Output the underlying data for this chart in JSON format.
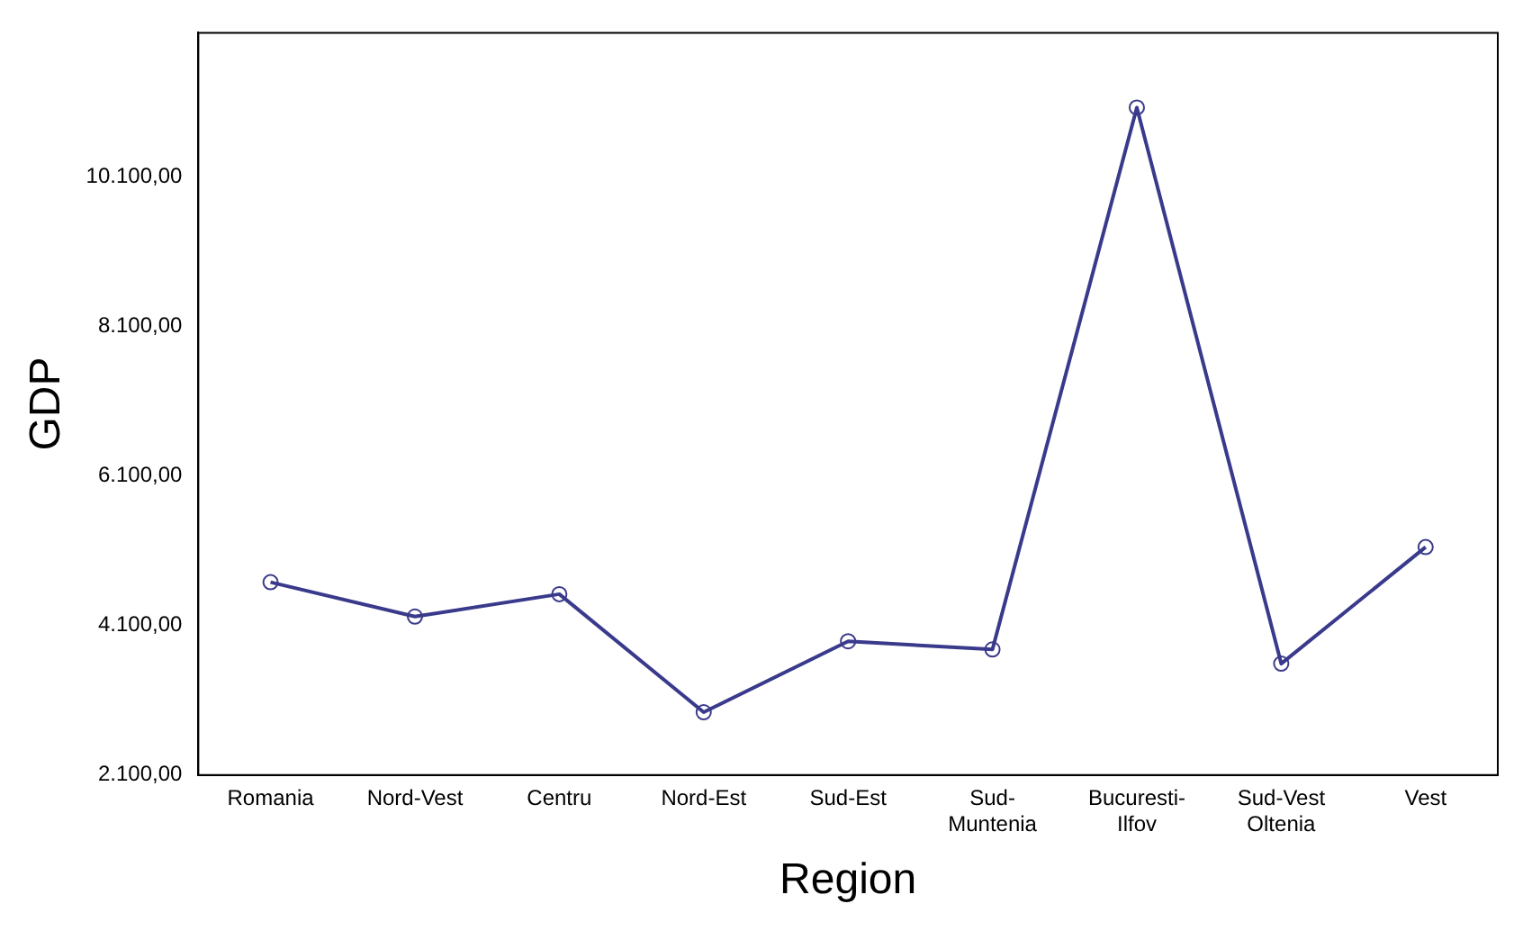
{
  "chart_data": {
    "type": "line",
    "xlabel": "Region",
    "ylabel": "GDP",
    "categories": [
      "Romania",
      "Nord-Vest",
      "Centru",
      "Nord-Est",
      "Sud-Est",
      "Sud-Muntenia",
      "Bucuresti-Ilfov",
      "Sud-Vest Oltenia",
      "Vest"
    ],
    "series": [
      {
        "color": "#3a3a8c",
        "values": [
          4680,
          4220,
          4520,
          2940,
          3890,
          3780,
          11030,
          3590,
          5150
        ]
      }
    ],
    "ylim": [
      2100,
      12030
    ],
    "yticks": [
      {
        "value": 2100,
        "label": "2.100,00"
      },
      {
        "value": 4100,
        "label": "4.100,00"
      },
      {
        "value": 6100,
        "label": "6.100,00"
      },
      {
        "value": 8100,
        "label": "8.100,00"
      },
      {
        "value": 10100,
        "label": "10.100,00"
      }
    ],
    "marker": "circle",
    "grid": false,
    "legend": false
  }
}
